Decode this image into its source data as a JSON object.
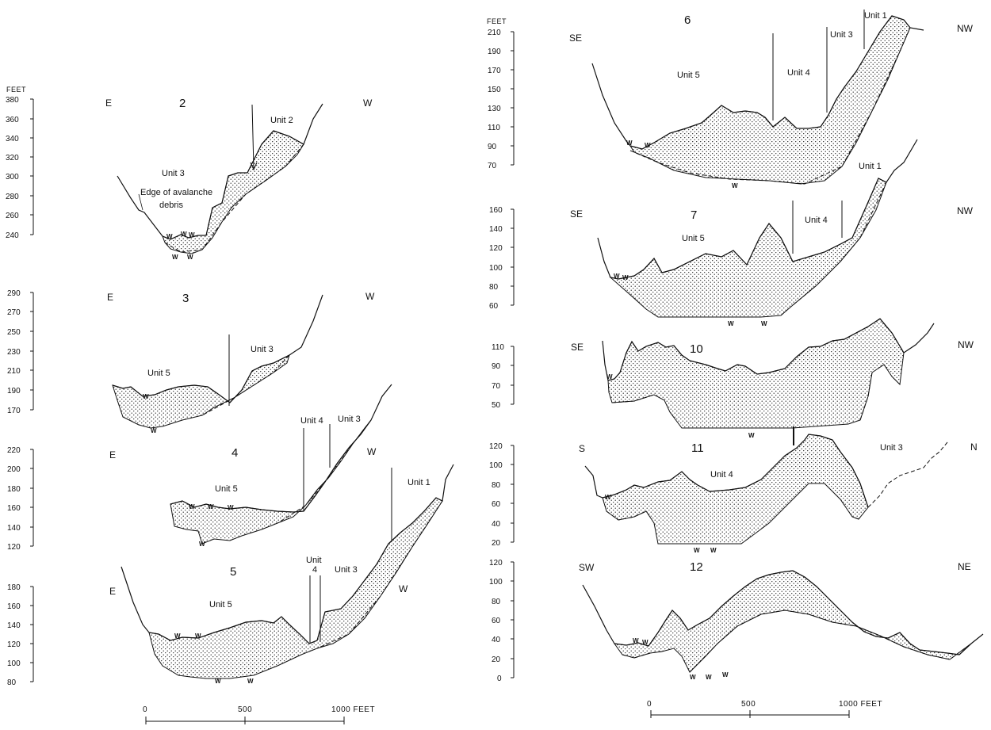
{
  "units_label": "FEET",
  "scale_bars": [
    {
      "labels": [
        "0",
        "500",
        "1000 FEET"
      ]
    },
    {
      "labels": [
        "0",
        "500",
        "1000 FEET"
      ]
    }
  ],
  "sections": [
    {
      "number": "2",
      "left_dir": "E",
      "right_dir": "W",
      "ticks": [
        "380",
        "360",
        "340",
        "320",
        "300",
        "280",
        "260",
        "240"
      ],
      "labels": [
        "Unit 2",
        "Unit 3",
        "Edge of avalanche",
        "debris"
      ],
      "w_marks": 7
    },
    {
      "number": "3",
      "left_dir": "E",
      "right_dir": "W",
      "ticks": [
        "290",
        "270",
        "250",
        "230",
        "210",
        "190",
        "170"
      ],
      "labels": [
        "Unit 5",
        "Unit 3"
      ],
      "w_marks": 2
    },
    {
      "number": "4",
      "left_dir": "E",
      "right_dir": "W",
      "ticks": [
        "220",
        "200",
        "180",
        "160",
        "140",
        "120"
      ],
      "labels": [
        "Unit 5",
        "Unit 4",
        "Unit 3",
        "Unit 1"
      ],
      "w_marks": 4
    },
    {
      "number": "5",
      "left_dir": "E",
      "right_dir": "W",
      "ticks": [
        "180",
        "160",
        "140",
        "120",
        "100",
        "80"
      ],
      "labels": [
        "Unit 5",
        "Unit",
        "4",
        "Unit 3"
      ],
      "w_marks": 4
    },
    {
      "number": "6",
      "left_dir": "SE",
      "right_dir": "NW",
      "ticks": [
        "210",
        "190",
        "170",
        "150",
        "130",
        "110",
        "90",
        "70"
      ],
      "labels": [
        "Unit 5",
        "Unit 4",
        "Unit 3",
        "Unit 1"
      ],
      "w_marks": 3
    },
    {
      "number": "7",
      "left_dir": "SE",
      "right_dir": "NW",
      "ticks": [
        "160",
        "140",
        "120",
        "100",
        "80",
        "60"
      ],
      "labels": [
        "Unit 5",
        "Unit 4",
        "Unit 1"
      ],
      "w_marks": 4
    },
    {
      "number": "10",
      "left_dir": "SE",
      "right_dir": "NW",
      "ticks": [
        "110",
        "90",
        "70",
        "50"
      ],
      "labels": [],
      "w_marks": 2
    },
    {
      "number": "11",
      "left_dir": "S",
      "right_dir": "N",
      "ticks": [
        "120",
        "100",
        "80",
        "60",
        "40",
        "20"
      ],
      "labels": [
        "Unit 4",
        "Unit 3"
      ],
      "w_marks": 3
    },
    {
      "number": "12",
      "left_dir": "SW",
      "right_dir": "NE",
      "ticks": [
        "120",
        "100",
        "80",
        "60",
        "40",
        "20",
        "0"
      ],
      "labels": [],
      "w_marks": 5
    }
  ]
}
